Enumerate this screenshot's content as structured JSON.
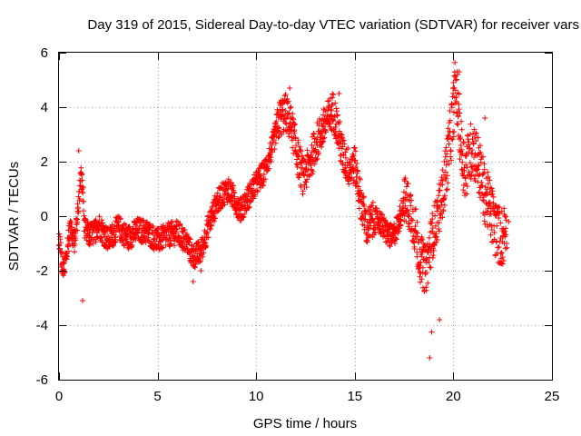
{
  "chart_data": {
    "type": "scatter",
    "title": "Day 319 of 2015, Sidereal Day-to-day VTEC variation (SDTVAR) for receiver vars",
    "xlabel": "GPS time / hours",
    "ylabel": "SDTVAR / TECUs",
    "xlim": [
      0,
      25
    ],
    "ylim": [
      -6,
      6
    ],
    "xticks": [
      0,
      5,
      10,
      15,
      20,
      25
    ],
    "yticks": [
      -6,
      -4,
      -2,
      0,
      2,
      4,
      6
    ],
    "grid": true,
    "marker": "+",
    "color": "#ff0000",
    "series": [
      {
        "name": "vars",
        "trend": {
          "x": [
            0.0,
            0.2,
            0.4,
            0.6,
            0.8,
            1.0,
            1.1,
            1.2,
            1.3,
            1.5,
            1.8,
            2.0,
            2.5,
            3.0,
            3.5,
            4.0,
            4.5,
            5.0,
            5.5,
            6.0,
            6.5,
            6.8,
            7.2,
            7.6,
            8.0,
            8.3,
            8.6,
            8.9,
            9.2,
            9.6,
            10.0,
            10.4,
            10.8,
            11.2,
            11.5,
            11.8,
            12.1,
            12.4,
            12.7,
            13.0,
            13.3,
            13.6,
            13.9,
            14.1,
            14.4,
            14.7,
            15.0,
            15.3,
            15.6,
            15.9,
            16.2,
            16.5,
            16.9,
            17.2,
            17.5,
            17.8,
            18.1,
            18.3,
            18.6,
            18.9,
            19.2,
            19.5,
            19.8,
            20.0,
            20.1,
            20.2,
            20.4,
            20.6,
            20.8,
            21.0,
            21.3,
            21.6,
            21.9,
            22.2,
            22.5,
            22.7
          ],
          "y": [
            -0.8,
            -2.0,
            -1.2,
            -0.5,
            -1.0,
            0.5,
            1.5,
            1.0,
            -0.5,
            -0.7,
            -0.6,
            -0.3,
            -0.9,
            -0.4,
            -0.8,
            -0.5,
            -0.6,
            -0.9,
            -0.7,
            -0.6,
            -1.0,
            -1.5,
            -1.3,
            -0.3,
            0.5,
            0.8,
            1.0,
            0.6,
            0.2,
            0.7,
            1.2,
            1.6,
            2.5,
            3.6,
            3.8,
            3.3,
            2.2,
            1.4,
            1.9,
            2.6,
            3.1,
            3.5,
            3.9,
            3.3,
            2.2,
            1.8,
            1.9,
            0.6,
            -0.4,
            -0.2,
            -0.1,
            -0.5,
            -0.8,
            -0.3,
            0.6,
            0.3,
            -0.6,
            -1.5,
            -2.0,
            -0.8,
            0.0,
            1.0,
            2.6,
            3.8,
            4.8,
            4.3,
            2.5,
            1.6,
            2.2,
            2.6,
            1.8,
            0.8,
            0.2,
            -0.6,
            -0.8,
            -0.2
          ]
        },
        "outliers": [
          {
            "x": 18.8,
            "y": -5.2
          },
          {
            "x": 18.9,
            "y": -4.25
          },
          {
            "x": 19.3,
            "y": -3.8
          },
          {
            "x": 1.2,
            "y": -3.1
          },
          {
            "x": 1.0,
            "y": 2.4
          },
          {
            "x": 20.3,
            "y": 5.3
          },
          {
            "x": 20.0,
            "y": 4.9
          },
          {
            "x": 11.7,
            "y": 4.7
          },
          {
            "x": 14.2,
            "y": 4.5
          },
          {
            "x": 21.6,
            "y": 3.6
          },
          {
            "x": 22.5,
            "y": -1.5
          },
          {
            "x": 22.8,
            "y": -0.2
          },
          {
            "x": 6.8,
            "y": -2.4
          },
          {
            "x": 7.2,
            "y": -2.0
          }
        ]
      }
    ]
  }
}
